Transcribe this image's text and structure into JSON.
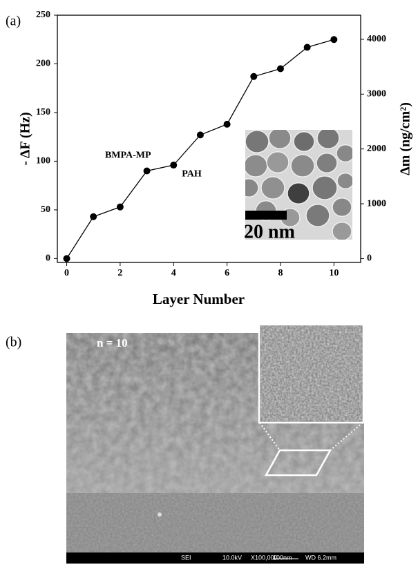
{
  "chart_data": {
    "type": "line",
    "x": [
      0,
      1,
      2,
      3,
      4,
      5,
      6,
      7,
      8,
      9,
      10
    ],
    "series": [
      {
        "color": "#000000",
        "values": [
          0,
          43,
          53,
          90,
          96,
          127,
          138,
          187,
          195,
          217,
          225
        ]
      }
    ],
    "xlim": [
      -0.35,
      11
    ],
    "xticks": [
      0,
      2,
      4,
      6,
      8,
      10
    ],
    "ylim": [
      -4,
      250
    ],
    "yticks": [
      0,
      50,
      100,
      150,
      200,
      250
    ],
    "y2lim": [
      -70,
      4440
    ],
    "y2ticks": [
      0,
      1000,
      2000,
      3000,
      4000
    ],
    "xlabel": "Layer Number",
    "ylabel": "- ΔF (Hz)",
    "y2label": "Δm (ng/cm²)",
    "annotations": [
      "BMPA-MP",
      "PAH"
    ],
    "grid": false
  },
  "panel_labels": [
    "(a)",
    "(b)"
  ],
  "inset_scale_label": "20 nm",
  "sem": {
    "label": "n = 10",
    "footer": [
      "SEI",
      "10.0kV",
      "X100,000",
      "100nm",
      "WD 6.2mm"
    ]
  }
}
